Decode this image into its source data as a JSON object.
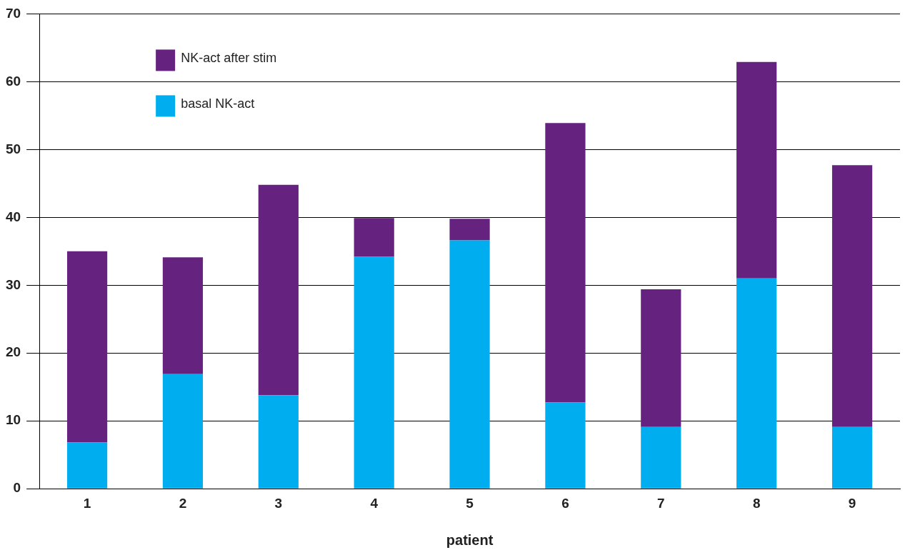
{
  "chart_data": {
    "type": "bar",
    "stacked": true,
    "xlabel": "patient",
    "categories": [
      "1",
      "2",
      "3",
      "4",
      "5",
      "6",
      "7",
      "8",
      "9"
    ],
    "series": [
      {
        "name": "basal NK-act",
        "color": "#00aeef",
        "values": [
          6.8,
          16.9,
          13.8,
          34.2,
          36.6,
          12.7,
          9.1,
          31.0,
          9.1
        ]
      },
      {
        "name": "NK-act after stim",
        "color": "#65237f",
        "values": [
          28.2,
          17.2,
          31.0,
          5.7,
          3.2,
          41.2,
          20.3,
          31.9,
          38.6
        ]
      }
    ],
    "ylim": [
      0,
      70
    ],
    "yticks": [
      0,
      10,
      20,
      30,
      40,
      50,
      60,
      70
    ],
    "grid": "y",
    "legend": "top left"
  }
}
